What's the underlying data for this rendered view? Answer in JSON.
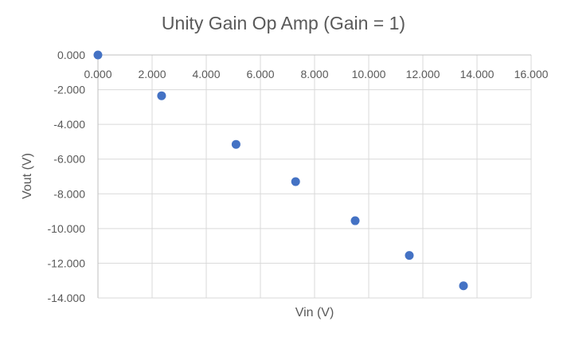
{
  "chart_data": {
    "type": "scatter",
    "title": "Unity Gain Op Amp (Gain = 1)",
    "xlabel": "Vin (V)",
    "ylabel": "Vout (V)",
    "xlim": [
      0,
      16
    ],
    "ylim": [
      -14,
      0
    ],
    "x_ticks": [
      "0.000",
      "2.000",
      "4.000",
      "6.000",
      "8.000",
      "10.000",
      "12.000",
      "14.000",
      "16.000"
    ],
    "y_ticks": [
      "0.000",
      "-2.000",
      "-4.000",
      "-6.000",
      "-8.000",
      "-10.000",
      "-12.000",
      "-14.000"
    ],
    "grid": true,
    "legend": "none",
    "series": [
      {
        "color": "#4472c4",
        "x": [
          0.0,
          2.35,
          5.1,
          7.3,
          9.5,
          11.5,
          13.5
        ],
        "y": [
          0.0,
          -2.35,
          -5.15,
          -7.3,
          -9.55,
          -11.55,
          -13.3
        ]
      }
    ]
  }
}
